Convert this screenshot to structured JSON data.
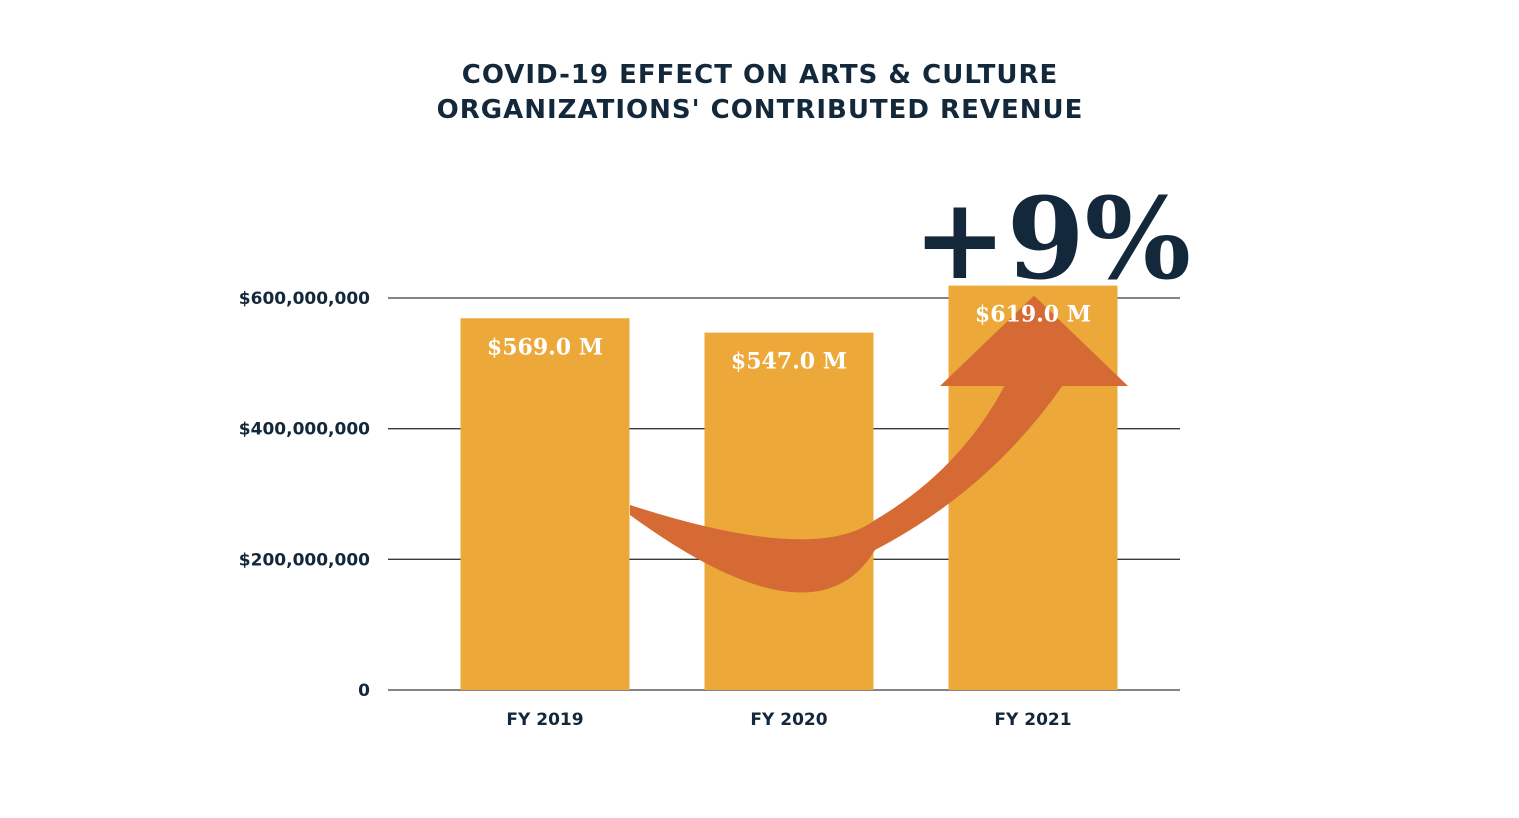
{
  "chart_data": {
    "type": "bar",
    "title": [
      "COVID-19 EFFECT ON ARTS & CULTURE",
      "ORGANIZATIONS' CONTRIBUTED REVENUE"
    ],
    "categories": [
      "FY 2019",
      "FY 2020",
      "FY 2021"
    ],
    "values": [
      569000000,
      547000000,
      619000000
    ],
    "data_labels": [
      "$569.0 M",
      "$547.0 M",
      "$619.0 M"
    ],
    "ylim": [
      0,
      600000000
    ],
    "yticks": [
      {
        "value": 0,
        "label": "0"
      },
      {
        "value": 200000000,
        "label": "$200,000,000"
      },
      {
        "value": 400000000,
        "label": "$400,000,000"
      },
      {
        "value": 600000000,
        "label": "$600,000,000"
      }
    ],
    "grid": true,
    "annotation": "+9%",
    "colors": {
      "bar": "#eca93a",
      "arrow": "#d66a35",
      "text": "#13283a",
      "grid": "#3a3a3a"
    }
  }
}
